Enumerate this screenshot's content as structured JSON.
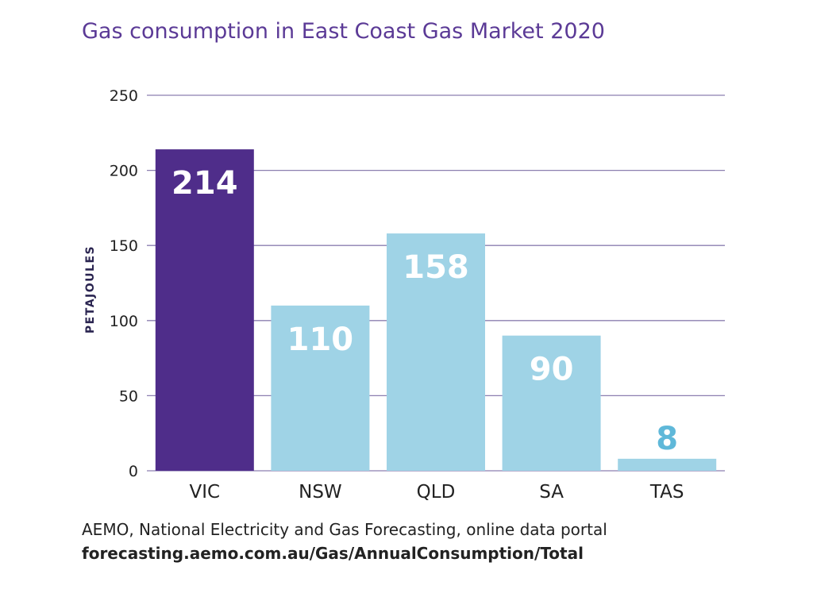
{
  "chart_data": {
    "type": "bar",
    "title": "Gas consumption in East Coast Gas Market 2020",
    "ylabel": "PETAJOULES",
    "xlabel": "",
    "ylim": [
      0,
      250
    ],
    "yticks": [
      0,
      50,
      100,
      150,
      200,
      250
    ],
    "categories": [
      "VIC",
      "NSW",
      "QLD",
      "SA",
      "TAS"
    ],
    "values": [
      214,
      110,
      158,
      90,
      8
    ],
    "data_labels": [
      "214",
      "110",
      "158",
      "90",
      "8"
    ],
    "colors": {
      "highlight": "#4f2d8a",
      "bar": "#9fd3e6",
      "small_label": "#5fb8d9",
      "grid": "#8c7fb0",
      "title": "#5b3a96"
    },
    "grid": true
  },
  "source": {
    "line1": "AEMO, National Electricity and Gas Forecasting, online data portal",
    "line2": "forecasting.aemo.com.au/Gas/AnnualConsumption/Total"
  }
}
